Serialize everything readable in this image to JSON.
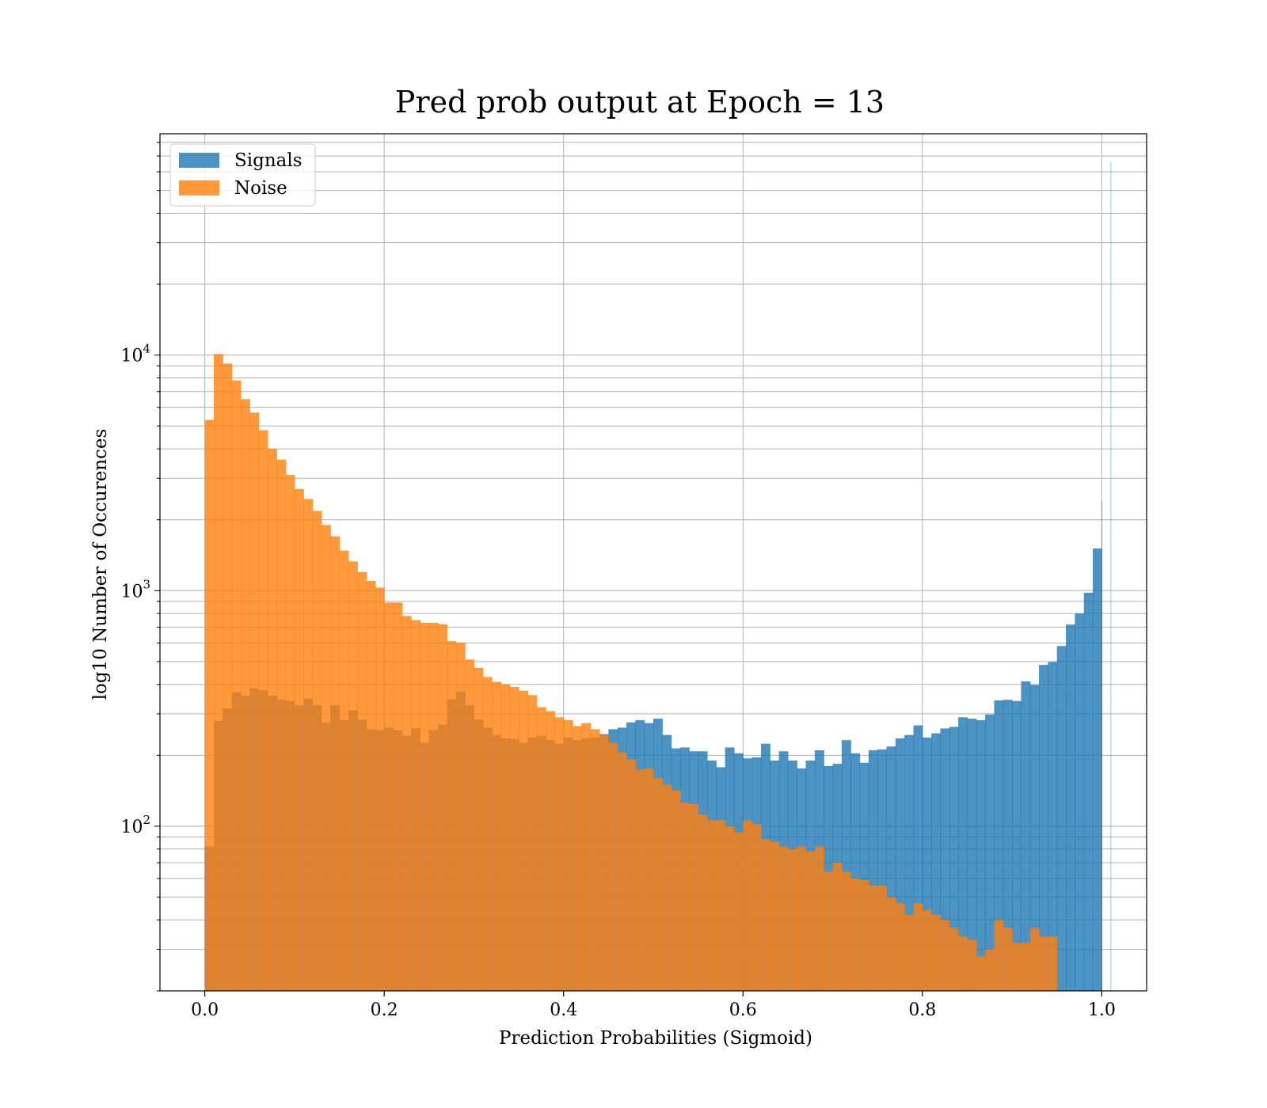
{
  "chart_data": {
    "type": "bar",
    "title": "Pred prob output at Epoch = 13",
    "xlabel": "Prediction Probabilities (Sigmoid)",
    "ylabel": "log10 Number of Occurences",
    "xlim": [
      -0.05,
      1.05
    ],
    "ylim": [
      20,
      87000
    ],
    "yscale": "log",
    "grid": true,
    "legend_position": "upper-left",
    "x_ticks": [
      "0.0",
      "0.2",
      "0.4",
      "0.6",
      "0.8",
      "1.0"
    ],
    "y_ticks": [
      {
        "base": "10",
        "exp": "2",
        "value": 100
      },
      {
        "base": "10",
        "exp": "3",
        "value": 1000
      },
      {
        "base": "10",
        "exp": "4",
        "value": 10000
      }
    ],
    "bin_start": 0.0,
    "bin_width": 0.01,
    "series": [
      {
        "name": "Signals",
        "color": "#1f77b4",
        "values": [
          82,
          280,
          316,
          370,
          358,
          385,
          378,
          358,
          345,
          340,
          326,
          348,
          326,
          275,
          326,
          282,
          310,
          283,
          258,
          256,
          262,
          256,
          242,
          260,
          226,
          256,
          270,
          346,
          372,
          326,
          284,
          262,
          244,
          236,
          234,
          226,
          238,
          242,
          232,
          224,
          238,
          232,
          236,
          238,
          246,
          258,
          262,
          276,
          282,
          274,
          286,
          244,
          214,
          216,
          208,
          208,
          190,
          178,
          216,
          204,
          194,
          196,
          224,
          190,
          208,
          190,
          176,
          190,
          210,
          180,
          184,
          232,
          204,
          186,
          210,
          212,
          218,
          236,
          244,
          268,
          238,
          248,
          260,
          264,
          290,
          286,
          282,
          298,
          342,
          344,
          340,
          412,
          398,
          484,
          498,
          582,
          718,
          800,
          980,
          1510,
          2400,
          66000
        ]
      },
      {
        "name": "Noise",
        "color": "#ff7f0e",
        "values": [
          5300,
          10100,
          9200,
          7800,
          6500,
          5700,
          4800,
          4000,
          3600,
          3100,
          2700,
          2450,
          2180,
          1900,
          1700,
          1480,
          1330,
          1200,
          1100,
          1030,
          890,
          890,
          780,
          750,
          730,
          730,
          720,
          610,
          600,
          510,
          470,
          430,
          410,
          400,
          390,
          376,
          360,
          320,
          308,
          290,
          282,
          266,
          274,
          258,
          244,
          226,
          206,
          192,
          174,
          176,
          160,
          150,
          142,
          126,
          124,
          112,
          106,
          106,
          100,
          94,
          106,
          102,
          88,
          86,
          82,
          80,
          82,
          78,
          82,
          64,
          70,
          64,
          60,
          59,
          56,
          56,
          50,
          47,
          42,
          47,
          44,
          42,
          40,
          37,
          34,
          33,
          28,
          30,
          40,
          37,
          32,
          32,
          37,
          34,
          34
        ]
      }
    ]
  }
}
